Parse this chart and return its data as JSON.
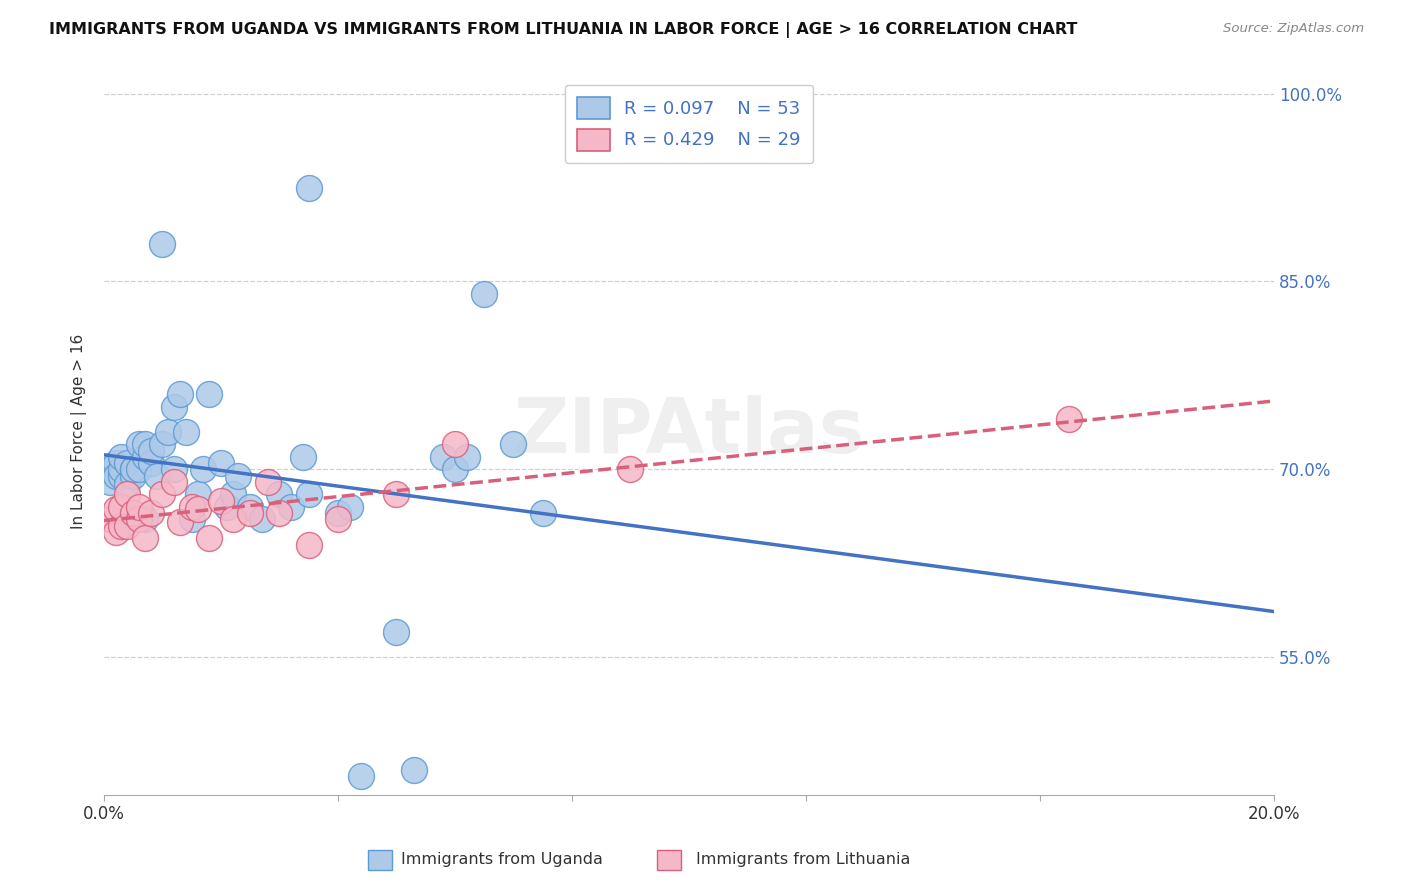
{
  "title": "IMMIGRANTS FROM UGANDA VS IMMIGRANTS FROM LITHUANIA IN LABOR FORCE | AGE > 16 CORRELATION CHART",
  "source": "Source: ZipAtlas.com",
  "ylabel": "In Labor Force | Age > 16",
  "xlim": [
    0.0,
    0.2
  ],
  "ylim": [
    0.44,
    1.02
  ],
  "uganda_color": "#aec9e8",
  "lithuania_color": "#f5b8c8",
  "uganda_edge_color": "#5b9bd5",
  "lithuania_edge_color": "#d9607a",
  "trend_uganda_color": "#4472c4",
  "trend_lithuania_color": "#d9607a",
  "legend_text_color": "#4472c4",
  "legend_r_uganda": "R = 0.097",
  "legend_n_uganda": "N = 53",
  "legend_r_lithuania": "R = 0.429",
  "legend_n_lithuania": "N = 29",
  "grid_color": "#d0d0d0",
  "ytick_color": "#4472c4",
  "uganda_x": [
    0.001,
    0.001,
    0.002,
    0.002,
    0.003,
    0.003,
    0.003,
    0.004,
    0.004,
    0.005,
    0.005,
    0.005,
    0.006,
    0.006,
    0.007,
    0.007,
    0.007,
    0.008,
    0.008,
    0.009,
    0.01,
    0.01,
    0.011,
    0.012,
    0.012,
    0.013,
    0.014,
    0.015,
    0.016,
    0.017,
    0.018,
    0.02,
    0.021,
    0.022,
    0.023,
    0.025,
    0.027,
    0.03,
    0.032,
    0.034,
    0.035,
    0.035,
    0.04,
    0.042,
    0.044,
    0.05,
    0.053,
    0.058,
    0.06,
    0.062,
    0.065,
    0.07,
    0.075
  ],
  "uganda_y": [
    0.7,
    0.69,
    0.705,
    0.695,
    0.695,
    0.7,
    0.71,
    0.688,
    0.705,
    0.7,
    0.695,
    0.7,
    0.72,
    0.7,
    0.71,
    0.72,
    0.66,
    0.705,
    0.715,
    0.695,
    0.72,
    0.88,
    0.73,
    0.75,
    0.7,
    0.76,
    0.73,
    0.66,
    0.68,
    0.7,
    0.76,
    0.705,
    0.67,
    0.68,
    0.695,
    0.67,
    0.66,
    0.68,
    0.67,
    0.71,
    0.925,
    0.68,
    0.665,
    0.67,
    0.455,
    0.57,
    0.46,
    0.71,
    0.7,
    0.71,
    0.84,
    0.72,
    0.665
  ],
  "lithuania_x": [
    0.001,
    0.002,
    0.002,
    0.003,
    0.003,
    0.004,
    0.004,
    0.005,
    0.006,
    0.006,
    0.007,
    0.008,
    0.01,
    0.012,
    0.013,
    0.015,
    0.016,
    0.018,
    0.02,
    0.022,
    0.025,
    0.028,
    0.03,
    0.035,
    0.04,
    0.05,
    0.06,
    0.09,
    0.165
  ],
  "lithuania_y": [
    0.66,
    0.65,
    0.668,
    0.655,
    0.67,
    0.68,
    0.655,
    0.665,
    0.66,
    0.67,
    0.645,
    0.665,
    0.68,
    0.69,
    0.658,
    0.67,
    0.668,
    0.645,
    0.675,
    0.66,
    0.665,
    0.69,
    0.665,
    0.64,
    0.66,
    0.68,
    0.72,
    0.7,
    0.74
  ]
}
